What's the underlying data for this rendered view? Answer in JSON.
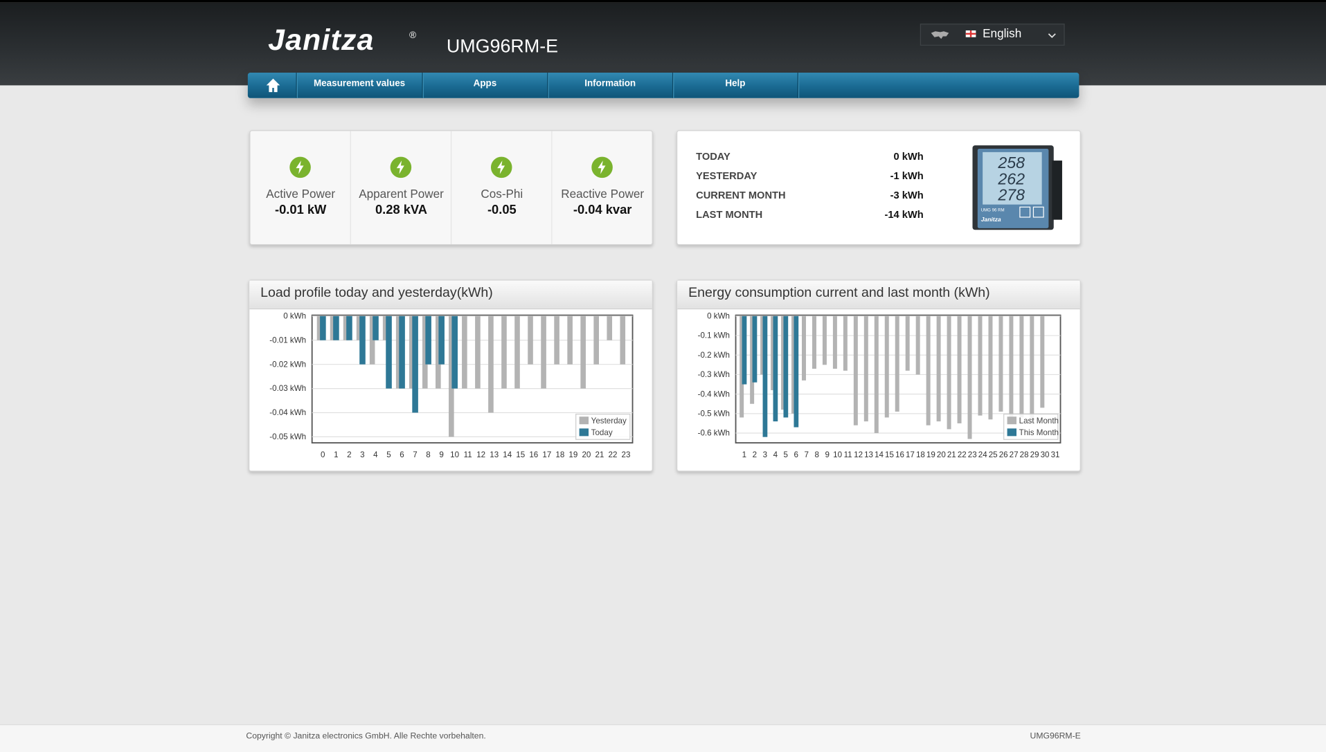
{
  "header": {
    "logo": "Janitza",
    "logo_mark": "®",
    "device": "UMG96RM-E",
    "language": "English"
  },
  "nav": [
    "Measurement values",
    "Apps",
    "Information",
    "Help"
  ],
  "measurements": [
    {
      "label": "Active Power",
      "value": "-0.01 kW"
    },
    {
      "label": "Apparent Power",
      "value": "0.28 kVA"
    },
    {
      "label": "Cos-Phi",
      "value": "-0.05"
    },
    {
      "label": "Reactive Power",
      "value": "-0.04 kvar"
    }
  ],
  "energy": [
    {
      "label": "TODAY",
      "value": "0 kWh"
    },
    {
      "label": "YESTERDAY",
      "value": "-1 kWh"
    },
    {
      "label": "CURRENT MONTH",
      "value": "-3 kWh"
    },
    {
      "label": "LAST MONTH",
      "value": "-14 kWh"
    }
  ],
  "device_display": [
    "258",
    "262",
    "278"
  ],
  "device_labels": [
    "UMG 96 RM",
    "Janitza"
  ],
  "chart_data": [
    {
      "type": "bar",
      "title": "Load profile today and yesterday(kWh)",
      "categories": [
        "0",
        "1",
        "2",
        "3",
        "4",
        "5",
        "6",
        "7",
        "8",
        "9",
        "10",
        "11",
        "12",
        "13",
        "14",
        "15",
        "16",
        "17",
        "18",
        "19",
        "20",
        "21",
        "22",
        "23"
      ],
      "series": [
        {
          "name": "Yesterday",
          "color": "#b3b3b3",
          "values": [
            -0.01,
            -0.01,
            -0.01,
            -0.01,
            -0.02,
            -0.01,
            -0.03,
            -0.03,
            -0.03,
            -0.03,
            -0.05,
            -0.03,
            -0.03,
            -0.04,
            -0.03,
            -0.03,
            -0.02,
            -0.03,
            -0.02,
            -0.02,
            -0.03,
            -0.02,
            -0.01,
            -0.02
          ]
        },
        {
          "name": "Today",
          "color": "#2e7896",
          "values": [
            -0.01,
            -0.01,
            -0.01,
            -0.02,
            -0.01,
            -0.03,
            -0.03,
            -0.04,
            -0.02,
            -0.02,
            -0.03,
            null,
            null,
            null,
            null,
            null,
            null,
            null,
            null,
            null,
            null,
            null,
            null,
            null
          ]
        }
      ],
      "ylim": [
        -0.0525,
        0
      ],
      "yticks": [
        {
          "value": 0,
          "label": "0 kWh"
        },
        {
          "value": -0.01,
          "label": "-0.01 kWh"
        },
        {
          "value": -0.02,
          "label": "-0.02 kWh"
        },
        {
          "value": -0.03,
          "label": "-0.03 kWh"
        },
        {
          "value": -0.04,
          "label": "-0.04 kWh"
        },
        {
          "value": -0.05,
          "label": "-0.05 kWh"
        }
      ],
      "grid": true,
      "legend": "lower right"
    },
    {
      "type": "bar",
      "title": "Energy consumption current and last month (kWh)",
      "categories": [
        "1",
        "2",
        "3",
        "4",
        "5",
        "6",
        "7",
        "8",
        "9",
        "10",
        "11",
        "12",
        "13",
        "14",
        "15",
        "16",
        "17",
        "18",
        "19",
        "20",
        "21",
        "22",
        "23",
        "24",
        "25",
        "26",
        "27",
        "28",
        "29",
        "30",
        "31"
      ],
      "series": [
        {
          "name": "Last Month",
          "color": "#b3b3b3",
          "values": [
            -0.52,
            -0.45,
            -0.3,
            -0.38,
            -0.48,
            -0.5,
            -0.33,
            -0.27,
            -0.25,
            -0.27,
            -0.28,
            -0.56,
            -0.54,
            -0.6,
            -0.52,
            -0.49,
            -0.28,
            -0.3,
            -0.56,
            -0.54,
            -0.58,
            -0.55,
            -0.63,
            -0.51,
            -0.53,
            -0.49,
            -0.54,
            -0.52,
            -0.55,
            -0.47,
            null
          ]
        },
        {
          "name": "This Month",
          "color": "#2e7896",
          "values": [
            -0.35,
            -0.34,
            -0.62,
            -0.54,
            -0.52,
            -0.57,
            null,
            null,
            null,
            null,
            null,
            null,
            null,
            null,
            null,
            null,
            null,
            null,
            null,
            null,
            null,
            null,
            null,
            null,
            null,
            null,
            null,
            null,
            null,
            null,
            null
          ]
        }
      ],
      "ylim": [
        -0.65,
        0
      ],
      "yticks": [
        {
          "value": 0,
          "label": "0 kWh"
        },
        {
          "value": -0.1,
          "label": "-0.1 kWh"
        },
        {
          "value": -0.2,
          "label": "-0.2 kWh"
        },
        {
          "value": -0.3,
          "label": "-0.3 kWh"
        },
        {
          "value": -0.4,
          "label": "-0.4 kWh"
        },
        {
          "value": -0.5,
          "label": "-0.5 kWh"
        },
        {
          "value": -0.6,
          "label": "-0.6 kWh"
        }
      ],
      "grid": true,
      "legend": "lower right"
    }
  ],
  "footer": {
    "copyright": "Copyright © Janitza electronics GmbH. Alle Rechte vorbehalten.",
    "model": "UMG96RM-E"
  }
}
